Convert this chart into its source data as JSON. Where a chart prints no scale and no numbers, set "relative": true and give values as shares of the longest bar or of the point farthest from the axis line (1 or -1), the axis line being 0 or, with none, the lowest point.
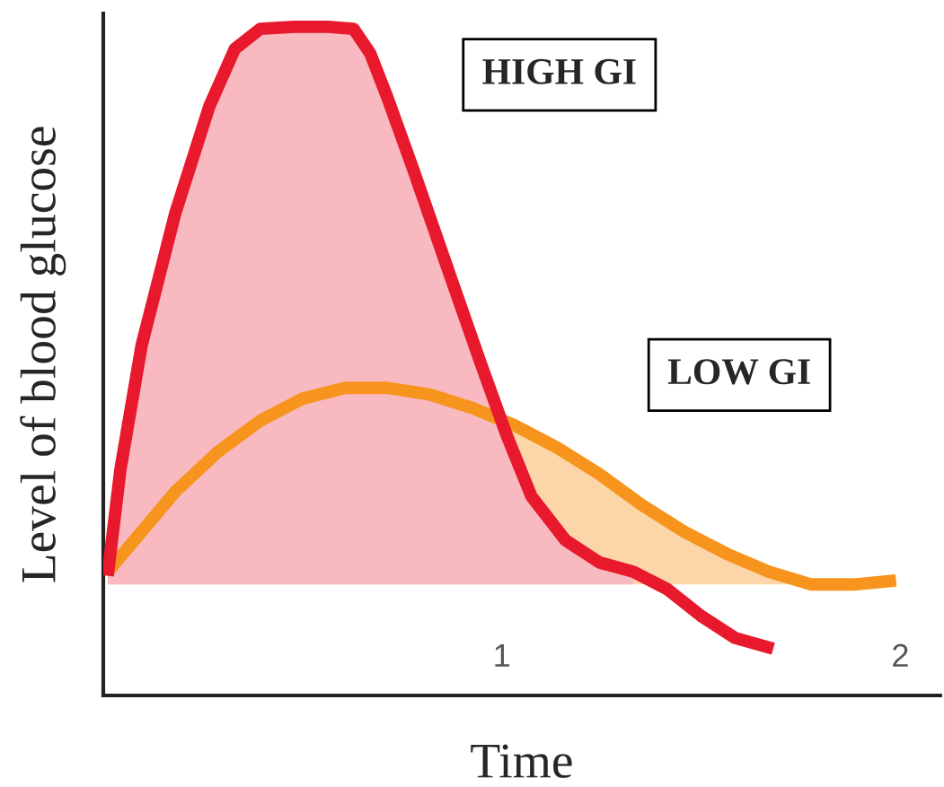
{
  "chart_data": {
    "type": "line",
    "relative": true,
    "xlabel": "Time",
    "ylabel": "Level of blood glucose",
    "xlim": [
      0,
      2.1
    ],
    "xticks": [
      1,
      2
    ],
    "grid": false,
    "marker": "none",
    "line_style": "solid",
    "series": [
      {
        "color": "#f7941d",
        "x": [
          0.011,
          0.096,
          0.181,
          0.287,
          0.394,
          0.5,
          0.606,
          0.713,
          0.819,
          0.926,
          1.032,
          1.138,
          1.245,
          1.351,
          1.457,
          1.564,
          1.67,
          1.777,
          1.883,
          1.989
        ],
        "values": [
          0.185,
          0.245,
          0.305,
          0.364,
          0.411,
          0.444,
          0.46,
          0.46,
          0.45,
          0.43,
          0.404,
          0.371,
          0.331,
          0.285,
          0.245,
          0.212,
          0.185,
          0.166,
          0.166,
          0.172
        ],
        "lower": [
          0.166,
          0.166,
          0.166,
          0.166,
          0.166,
          0.166,
          0.166,
          0.166,
          0.166,
          0.166,
          0.166,
          0.166,
          0.166,
          0.166,
          0.166,
          0.166,
          0.166,
          0.166,
          0.166,
          0.166
        ],
        "upper": [
          0.185,
          0.245,
          0.305,
          0.364,
          0.411,
          0.444,
          0.46,
          0.46,
          0.45,
          0.43,
          0.404,
          0.371,
          0.331,
          0.285,
          0.245,
          0.212,
          0.185,
          0.166,
          0.166,
          0.172
        ]
      },
      {
        "color": "#e8192c",
        "x": [
          0.011,
          0.043,
          0.096,
          0.181,
          0.266,
          0.33,
          0.394,
          0.479,
          0.564,
          0.628,
          0.67,
          0.713,
          0.777,
          0.862,
          0.947,
          1.011,
          1.074,
          1.16,
          1.245,
          1.33,
          1.415,
          1.5,
          1.585,
          1.681
        ],
        "values": [
          0.179,
          0.338,
          0.523,
          0.722,
          0.881,
          0.967,
          0.997,
          1.0,
          1.0,
          0.997,
          0.96,
          0.894,
          0.788,
          0.642,
          0.497,
          0.391,
          0.298,
          0.232,
          0.199,
          0.185,
          0.159,
          0.119,
          0.086,
          0.07
        ],
        "lower": [
          0.166,
          0.166,
          0.166,
          0.166,
          0.166,
          0.166,
          0.166,
          0.166,
          0.166,
          0.166,
          0.166,
          0.166,
          0.166,
          0.166,
          0.166,
          0.166,
          0.166,
          0.166,
          0.166,
          0.166,
          null,
          null,
          null,
          null
        ],
        "upper": [
          0.179,
          0.338,
          0.523,
          0.722,
          0.881,
          0.967,
          0.997,
          1.0,
          1.0,
          0.997,
          0.96,
          0.894,
          0.788,
          0.642,
          0.497,
          0.391,
          0.298,
          0.232,
          0.199,
          0.185,
          null,
          null,
          null,
          null
        ]
      }
    ],
    "annotations": [
      "HIGH GI",
      "LOW GI"
    ]
  }
}
